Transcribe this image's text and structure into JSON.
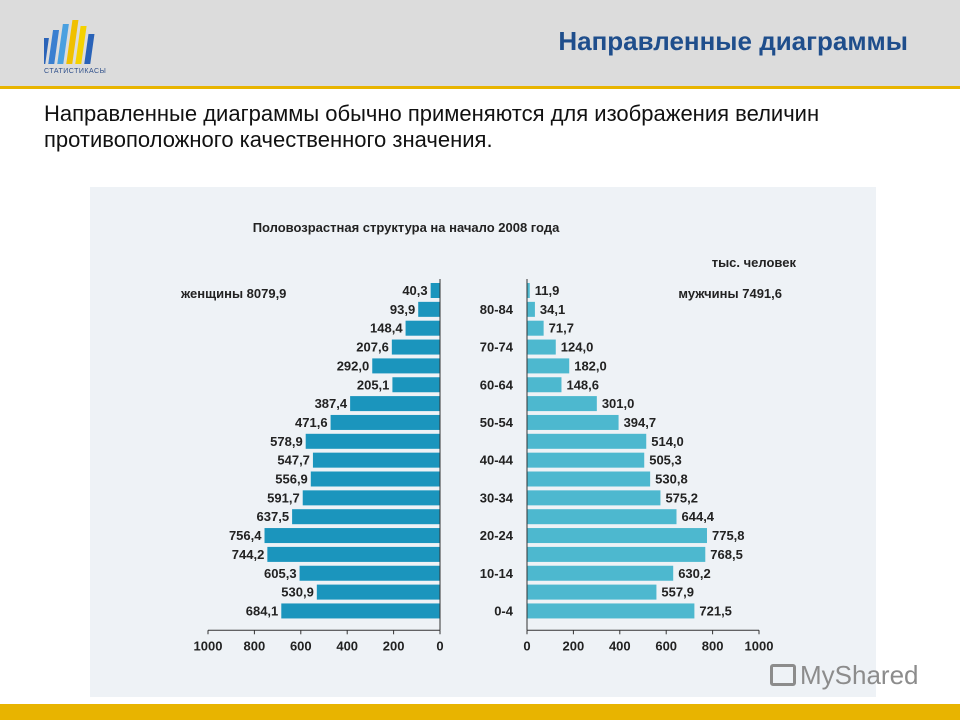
{
  "header": {
    "title": "Направленные диаграммы",
    "logo_caption": "СТАТИСТИКАСЫ"
  },
  "lead_text": "Направленные диаграммы обычно применяются для изображения величин противоположного качественного значения.",
  "watermark": "MyShared",
  "colors": {
    "women_bar": "#1b95bd",
    "men_bar": "#4db8cf",
    "accent_yellow": "#e8b400",
    "title_blue": "#1f4e8c"
  },
  "chart_data": {
    "type": "bar",
    "orientation": "horizontal",
    "layout": "population pyramid",
    "title": "Половозрастная структура на начало 2008 года",
    "unit_label": "тыс. человек",
    "age_labels": [
      "80-84",
      "70-74",
      "60-64",
      "50-54",
      "40-44",
      "30-34",
      "20-24",
      "10-14",
      "0-4"
    ],
    "xlim": [
      0,
      1000
    ],
    "x_ticks_left": [
      "1000",
      "800",
      "600",
      "400",
      "200",
      "0"
    ],
    "x_ticks_right": [
      "0",
      "200",
      "400",
      "600",
      "800",
      "1000"
    ],
    "series": [
      {
        "name": "женщины 8079,9",
        "side": "left",
        "values": [
          40.3,
          93.9,
          148.4,
          207.6,
          292.0,
          205.1,
          387.4,
          471.6,
          578.9,
          547.7,
          556.9,
          591.7,
          637.5,
          756.4,
          744.2,
          605.3,
          530.9,
          684.1
        ],
        "labels": [
          "40,3",
          "93,9",
          "148,4",
          "207,6",
          "292,0",
          "205,1",
          "387,4",
          "471,6",
          "578,9",
          "547,7",
          "556,9",
          "591,7",
          "637,5",
          "756,4",
          "744,2",
          "605,3",
          "530,9",
          "684,1"
        ]
      },
      {
        "name": "мужчины 7491,6",
        "side": "right",
        "values": [
          11.9,
          34.1,
          71.7,
          124.0,
          182.0,
          148.6,
          301.0,
          394.7,
          514.0,
          505.3,
          530.8,
          575.2,
          644.4,
          775.8,
          768.5,
          630.2,
          557.9,
          721.5
        ],
        "labels": [
          "11,9",
          "34,1",
          "71,7",
          "124,0",
          "182,0",
          "148,6",
          "301,0",
          "394,7",
          "514,0",
          "505,3",
          "530,8",
          "575,2",
          "644,4",
          "775,8",
          "768,5",
          "630,2",
          "557,9",
          "721,5"
        ]
      }
    ]
  }
}
